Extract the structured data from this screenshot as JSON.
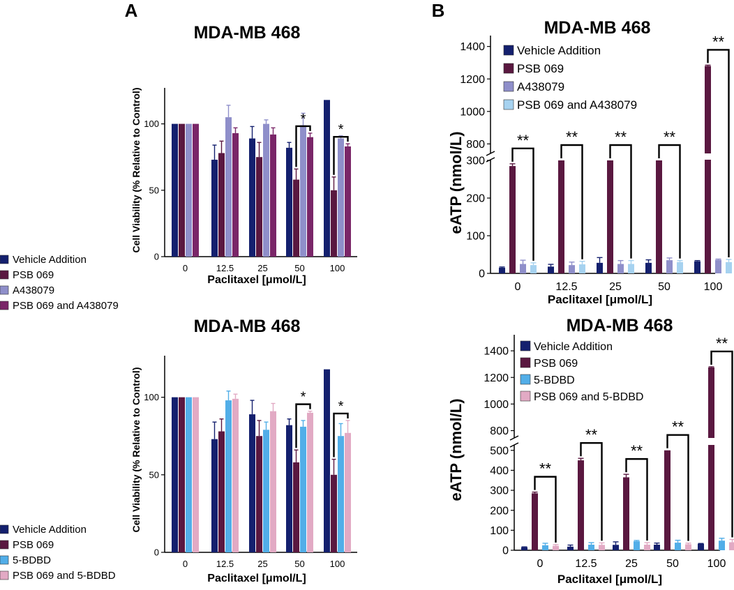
{
  "panel_labels": [
    "A",
    "B"
  ],
  "chart_data": [
    {
      "type": "bar",
      "title": "MDA-MB 468",
      "xlabel": "Paclitaxel [μmol/L]",
      "ylabel": "Cell Viability (% Relative to Control)",
      "categories": [
        "0",
        "12.5",
        "25",
        "50",
        "100"
      ],
      "ylim": [
        0,
        125
      ],
      "yticks": [
        0,
        50,
        100
      ],
      "legend_position": "left",
      "series": [
        {
          "name": "Vehicle Addition",
          "color": "#14206e",
          "values": [
            100,
            73,
            89,
            82,
            118
          ],
          "errors": [
            0,
            11,
            9,
            4,
            0
          ]
        },
        {
          "name": "PSB 069",
          "color": "#5a1840",
          "values": [
            100,
            78,
            75,
            58,
            50
          ],
          "errors": [
            0,
            9,
            11,
            8,
            10
          ]
        },
        {
          "name": "A438079",
          "color": "#8f8fca",
          "values": [
            100,
            105,
            100,
            99,
            89
          ],
          "errors": [
            0,
            9,
            3,
            9,
            2
          ]
        },
        {
          "name": "PSB 069 and A438079",
          "color": "#7a2668",
          "values": [
            100,
            93,
            92,
            90,
            83
          ],
          "errors": [
            0,
            4,
            5,
            3,
            2
          ]
        }
      ],
      "significance": [
        {
          "category": "50",
          "from": "PSB 069",
          "to": "PSB 069 and A438079",
          "label": "*"
        },
        {
          "category": "100",
          "from": "PSB 069",
          "to": "PSB 069 and A438079",
          "label": "*"
        }
      ]
    },
    {
      "type": "bar",
      "title": "MDA-MB 468",
      "xlabel": "Paclitaxel [μmol/L]",
      "ylabel": "eATP (nmol/L)",
      "categories": [
        "0",
        "12.5",
        "25",
        "50",
        "100"
      ],
      "axis_break": {
        "lower": [
          0,
          300
        ],
        "upper": [
          750,
          1450
        ]
      },
      "yticks_lower": [
        0,
        100,
        200,
        300
      ],
      "yticks_upper": [
        800,
        1000,
        1200,
        1400
      ],
      "legend_position": "top-left",
      "series": [
        {
          "name": "Vehicle Addition",
          "color": "#14206e",
          "values": [
            15,
            18,
            28,
            28,
            32
          ],
          "errors": [
            2,
            6,
            14,
            8,
            2
          ]
        },
        {
          "name": "PSB 069",
          "color": "#5a1840",
          "values": [
            285,
            300,
            300,
            300,
            1280
          ],
          "errors": [
            6,
            0,
            0,
            0,
            5
          ]
        },
        {
          "name": "A438079",
          "color": "#8f8fca",
          "values": [
            25,
            22,
            25,
            35,
            36
          ],
          "errors": [
            10,
            8,
            9,
            6,
            2
          ]
        },
        {
          "name": "PSB 069 and A438079",
          "color": "#a6d2f0",
          "values": [
            22,
            24,
            25,
            30,
            30
          ],
          "errors": [
            6,
            8,
            9,
            4,
            7
          ]
        }
      ],
      "significance": [
        {
          "category": "0",
          "from": "PSB 069",
          "to": "PSB 069 and A438079",
          "label": "**"
        },
        {
          "category": "12.5",
          "from": "PSB 069",
          "to": "PSB 069 and A438079",
          "label": "**"
        },
        {
          "category": "25",
          "from": "PSB 069",
          "to": "PSB 069 and A438079",
          "label": "**"
        },
        {
          "category": "50",
          "from": "PSB 069",
          "to": "PSB 069 and A438079",
          "label": "**"
        },
        {
          "category": "100",
          "from": "PSB 069",
          "to": "PSB 069 and A438079",
          "label": "**"
        }
      ]
    },
    {
      "type": "bar",
      "title": "MDA-MB 468",
      "xlabel": "Paclitaxel [μmol/L]",
      "ylabel": "Cell Viability (% Relative to Control)",
      "categories": [
        "0",
        "12.5",
        "25",
        "50",
        "100"
      ],
      "ylim": [
        0,
        125
      ],
      "yticks": [
        0,
        50,
        100
      ],
      "legend_position": "left",
      "series": [
        {
          "name": "Vehicle Addition",
          "color": "#14206e",
          "values": [
            100,
            73,
            89,
            82,
            118
          ],
          "errors": [
            0,
            11,
            9,
            4,
            0
          ]
        },
        {
          "name": "PSB 069",
          "color": "#5a1840",
          "values": [
            100,
            78,
            75,
            58,
            50
          ],
          "errors": [
            0,
            8,
            10,
            8,
            10
          ]
        },
        {
          "name": "5-BDBD",
          "color": "#52aee8",
          "values": [
            100,
            98,
            79,
            81,
            75
          ],
          "errors": [
            0,
            6,
            5,
            4,
            8
          ]
        },
        {
          "name": "PSB 069 and 5-BDBD",
          "color": "#e2aac4",
          "values": [
            100,
            99,
            91,
            90,
            77
          ],
          "errors": [
            0,
            3,
            5,
            1,
            8
          ]
        }
      ],
      "significance": [
        {
          "category": "50",
          "from": "PSB 069",
          "to": "PSB 069 and 5-BDBD",
          "label": "*"
        },
        {
          "category": "100",
          "from": "PSB 069",
          "to": "PSB 069 and 5-BDBD",
          "label": "*"
        }
      ]
    },
    {
      "type": "bar",
      "title": "MDA-MB 468",
      "xlabel": "Paclitaxel [μmol/L]",
      "ylabel": "eATP (nmol/L)",
      "categories": [
        "0",
        "12.5",
        "25",
        "50",
        "100"
      ],
      "axis_break": {
        "lower": [
          0,
          520
        ],
        "upper": [
          750,
          1500
        ]
      },
      "yticks_lower": [
        0,
        100,
        200,
        300,
        400,
        500
      ],
      "yticks_upper": [
        800,
        1000,
        1200,
        1400
      ],
      "legend_position": "top-left",
      "series": [
        {
          "name": "Vehicle Addition",
          "color": "#14206e",
          "values": [
            15,
            18,
            27,
            28,
            32
          ],
          "errors": [
            2,
            8,
            15,
            8,
            2
          ]
        },
        {
          "name": "PSB 069",
          "color": "#5a1840",
          "values": [
            285,
            450,
            365,
            500,
            1275
          ],
          "errors": [
            6,
            10,
            15,
            0,
            5
          ]
        },
        {
          "name": "5-BDBD",
          "color": "#52aee8",
          "values": [
            25,
            28,
            45,
            38,
            48
          ],
          "errors": [
            10,
            10,
            4,
            12,
            12
          ]
        },
        {
          "name": "PSB 069 and 5-BDBD",
          "color": "#e2aac4",
          "values": [
            22,
            27,
            28,
            30,
            40
          ],
          "errors": [
            6,
            10,
            10,
            6,
            14
          ]
        }
      ],
      "significance": [
        {
          "category": "0",
          "from": "PSB 069",
          "to": "PSB 069 and 5-BDBD",
          "label": "**"
        },
        {
          "category": "12.5",
          "from": "PSB 069",
          "to": "PSB 069 and 5-BDBD",
          "label": "**"
        },
        {
          "category": "25",
          "from": "PSB 069",
          "to": "PSB 069 and 5-BDBD",
          "label": "**"
        },
        {
          "category": "50",
          "from": "PSB 069",
          "to": "PSB 069 and 5-BDBD",
          "label": "**"
        },
        {
          "category": "100",
          "from": "PSB 069",
          "to": "PSB 069 and 5-BDBD",
          "label": "**"
        }
      ]
    }
  ]
}
